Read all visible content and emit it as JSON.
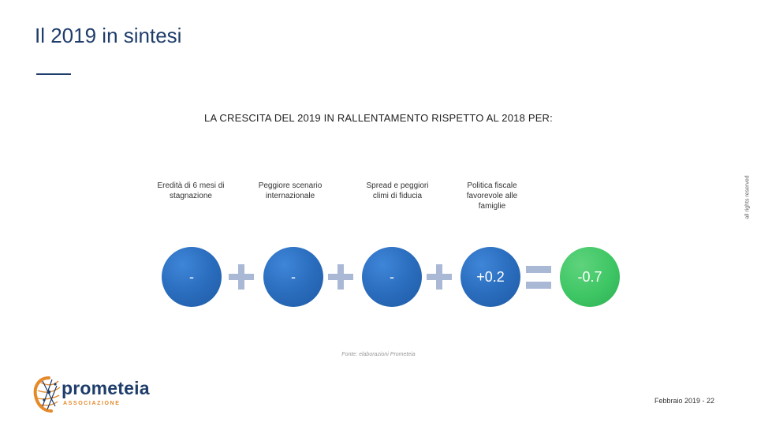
{
  "slide": {
    "title": "Il 2019 in sintesi",
    "subtitle": "LA CRESCITA DEL 2019 IN RALLENTAMENTO RISPETTO AL 2018 PER:",
    "rights": "all rights reserved",
    "source": "Fonte: elaborazioni Prometeia",
    "footer": "Febbraio 2019 - 22"
  },
  "factors": [
    {
      "label": "Eredità di 6 mesi di stagnazione",
      "value": "-"
    },
    {
      "label": "Peggiore scenario internazionale",
      "value": "-"
    },
    {
      "label": "Spread e peggiori climi di fiducia",
      "value": "-"
    },
    {
      "label": "Politica fiscale favorevole alle famiglie",
      "value": "+0.2"
    }
  ],
  "result": {
    "value": "-0.7"
  },
  "colors": {
    "factor_circle": "#2c6fc0",
    "result_circle": "#3ec664",
    "operator": "#a9b9d5",
    "title": "#1f3d6b",
    "logo_accent": "#e58a2a"
  },
  "logo": {
    "name": "prometeia",
    "sub": "ASSOCIAZIONE",
    "icon": "prometeia-logo-icon"
  }
}
